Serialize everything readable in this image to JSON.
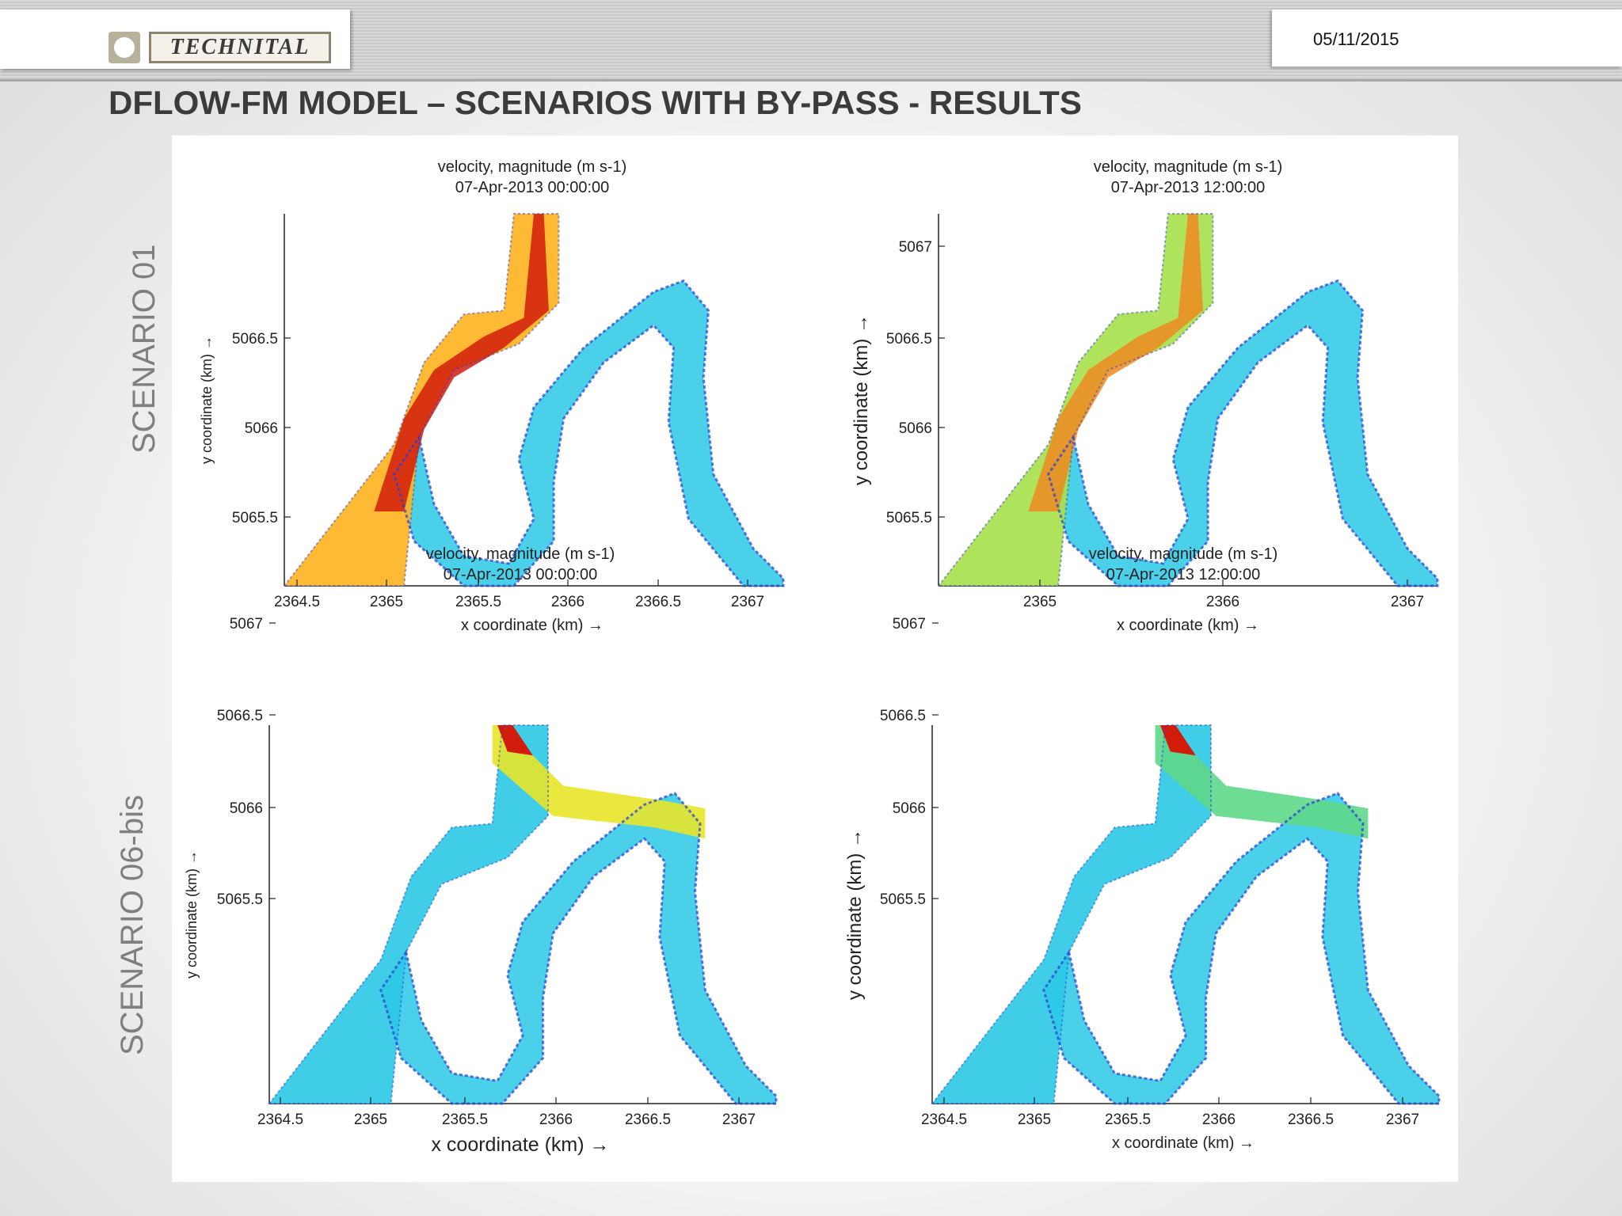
{
  "header": {
    "logo_text": "TECHNITAL",
    "date": "05/11/2015"
  },
  "slide_title": "DFLOW-FM MODEL – SCENARIOS WITH BY-PASS - RESULTS",
  "rows": [
    {
      "label": "SCENARIO 01"
    },
    {
      "label": "SCENARIO 06-bis"
    }
  ],
  "plots": [
    {
      "title_line1": "velocity, magnitude (m s-1)",
      "title_line2": "07-Apr-2013 00:00:00",
      "xlabel": "x coordinate (km) →",
      "ylabel": "y coordinate (km) →",
      "xticks": [
        "2364.5",
        "2365",
        "2365.5",
        "2366",
        "2366.5",
        "2367"
      ],
      "yticks": [
        "5065.5",
        "5066",
        "5066.5"
      ],
      "intensity": "high"
    },
    {
      "title_line1": "velocity, magnitude (m s-1)",
      "title_line2": "07-Apr-2013 12:00:00",
      "xlabel": "x coordinate (km) →",
      "ylabel": "y coordinate (km) →",
      "xticks": [
        "2365",
        "2366",
        "2367"
      ],
      "yticks": [
        "5065.5",
        "5066",
        "5066.5",
        "5067"
      ],
      "intensity": "medium"
    },
    {
      "title_line1": "velocity, magnitude (m s-1)",
      "title_line2": "07-Apr-2013 00:00:00",
      "xlabel": "x coordinate (km) →",
      "ylabel": "y coordinate (km) →",
      "xticks": [
        "2364.5",
        "2365",
        "2365.5",
        "2366",
        "2366.5",
        "2367"
      ],
      "yticks": [
        "5065.5",
        "5066",
        "5066.5",
        "5067"
      ],
      "intensity": "bypass-high"
    },
    {
      "title_line1": "velocity, magnitude (m s-1)",
      "title_line2": "07-Apr-2013 12:00:00",
      "xlabel": "x coordinate (km) →",
      "ylabel": "y coordinate (km) →",
      "xticks": [
        "2364.5",
        "2365",
        "2365.5",
        "2366",
        "2366.5",
        "2367"
      ],
      "yticks": [
        "5065.5",
        "5066",
        "5066.5",
        "5067"
      ],
      "intensity": "bypass-medium"
    }
  ],
  "colors": {
    "slow": "#2a3bd6",
    "medium": "#2bc8e6",
    "fast_mid": "#e8e52a",
    "fast": "#d21c0c"
  }
}
